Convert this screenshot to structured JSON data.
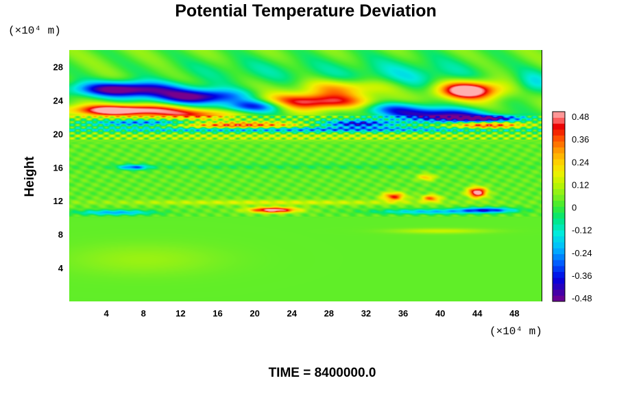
{
  "chart_data": {
    "type": "heatmap",
    "title": "Potential Temperature Deviation",
    "ylabel": "Height",
    "y_unit": "(×10⁴ m)",
    "x_unit": "(×10⁴ m)",
    "xlim": [
      0,
      51
    ],
    "ylim": [
      0,
      30
    ],
    "x_ticks": [
      "4",
      "8",
      "12",
      "16",
      "20",
      "24",
      "28",
      "32",
      "36",
      "40",
      "44",
      "48"
    ],
    "x_tick_values": [
      4,
      8,
      12,
      16,
      20,
      24,
      28,
      32,
      36,
      40,
      44,
      48
    ],
    "y_ticks": [
      "4",
      "8",
      "12",
      "16",
      "20",
      "24",
      "28"
    ],
    "y_tick_values": [
      4,
      8,
      12,
      16,
      20,
      24,
      28
    ],
    "colorbar": {
      "range": [
        -0.48,
        0.48
      ],
      "tick_labels": [
        "0.48",
        "0.36",
        "0.24",
        "0.12",
        "0",
        "-0.12",
        "-0.24",
        "-0.36",
        "-0.48"
      ],
      "tick_values": [
        0.48,
        0.36,
        0.24,
        0.12,
        0,
        -0.12,
        -0.24,
        -0.36,
        -0.48
      ]
    },
    "features": [
      {
        "x": 6,
        "y": 25.3,
        "sx": 5.5,
        "sy": 0.9,
        "value": -0.55
      },
      {
        "x": 14,
        "y": 24.4,
        "sx": 5.0,
        "sy": 0.9,
        "value": -0.5
      },
      {
        "x": 20,
        "y": 23.3,
        "sx": 3.5,
        "sy": 0.8,
        "value": -0.45
      },
      {
        "x": 6,
        "y": 22.8,
        "sx": 6.0,
        "sy": 0.7,
        "value": 0.55
      },
      {
        "x": 14,
        "y": 22.3,
        "sx": 4.0,
        "sy": 0.6,
        "value": 0.3
      },
      {
        "x": 26,
        "y": 23.8,
        "sx": 6.5,
        "sy": 1.0,
        "value": 0.45
      },
      {
        "x": 30,
        "y": 25.5,
        "sx": 5.0,
        "sy": 1.0,
        "value": 0.25
      },
      {
        "x": 20,
        "y": 27.5,
        "sx": 10.0,
        "sy": 1.6,
        "value": -0.08
      },
      {
        "x": 43,
        "y": 25.2,
        "sx": 3.5,
        "sy": 1.1,
        "value": 0.6
      },
      {
        "x": 37,
        "y": 26.8,
        "sx": 8.0,
        "sy": 2.2,
        "value": -0.14
      },
      {
        "x": 50,
        "y": 26.0,
        "sx": 2.0,
        "sy": 1.5,
        "value": -0.15
      },
      {
        "x": 40,
        "y": 22.2,
        "sx": 5.0,
        "sy": 0.8,
        "value": -0.45
      },
      {
        "x": 35,
        "y": 23.0,
        "sx": 4.0,
        "sy": 0.8,
        "value": -0.28
      },
      {
        "x": 31,
        "y": 21.2,
        "sx": 4.0,
        "sy": 0.45,
        "value": -0.4
      },
      {
        "x": 18,
        "y": 21.0,
        "sx": 7.0,
        "sy": 0.4,
        "value": 0.35
      },
      {
        "x": 8,
        "y": 21.3,
        "sx": 6.0,
        "sy": 0.4,
        "value": -0.3
      },
      {
        "x": 45,
        "y": 21.0,
        "sx": 4.0,
        "sy": 0.4,
        "value": 0.35
      },
      {
        "x": 45,
        "y": 21.8,
        "sx": 4.0,
        "sy": 0.4,
        "value": -0.45
      },
      {
        "x": 25,
        "y": 20.5,
        "sx": 25.0,
        "sy": 0.3,
        "value": -0.28
      },
      {
        "x": 25,
        "y": 19.6,
        "sx": 25.0,
        "sy": 0.4,
        "value": 0.09
      },
      {
        "x": 22,
        "y": 10.9,
        "sx": 2.5,
        "sy": 0.32,
        "value": 0.5
      },
      {
        "x": 5,
        "y": 10.6,
        "sx": 4.0,
        "sy": 0.3,
        "value": -0.25
      },
      {
        "x": 39,
        "y": 10.7,
        "sx": 6.0,
        "sy": 0.3,
        "value": -0.22
      },
      {
        "x": 45,
        "y": 10.9,
        "sx": 3.0,
        "sy": 0.3,
        "value": -0.35
      },
      {
        "x": 44,
        "y": 13.0,
        "sx": 1.0,
        "sy": 0.6,
        "value": 0.5
      },
      {
        "x": 35,
        "y": 12.5,
        "sx": 1.2,
        "sy": 0.5,
        "value": 0.35
      },
      {
        "x": 39,
        "y": 12.3,
        "sx": 1.0,
        "sy": 0.4,
        "value": 0.3
      },
      {
        "x": 38.5,
        "y": 14.8,
        "sx": 0.9,
        "sy": 0.4,
        "value": 0.2
      },
      {
        "x": 7,
        "y": 16.0,
        "sx": 1.6,
        "sy": 0.3,
        "value": -0.3
      },
      {
        "x": 22,
        "y": 11.8,
        "sx": 18.0,
        "sy": 0.3,
        "value": 0.12
      },
      {
        "x": 25,
        "y": 16.1,
        "sx": 25.0,
        "sy": 0.35,
        "value": -0.05
      },
      {
        "x": 40,
        "y": 8.4,
        "sx": 5.0,
        "sy": 0.3,
        "value": 0.1
      },
      {
        "x": 8,
        "y": 5.0,
        "sx": 8.0,
        "sy": 1.8,
        "value": 0.05
      }
    ]
  },
  "time_label": "TIME = 8400000.0"
}
